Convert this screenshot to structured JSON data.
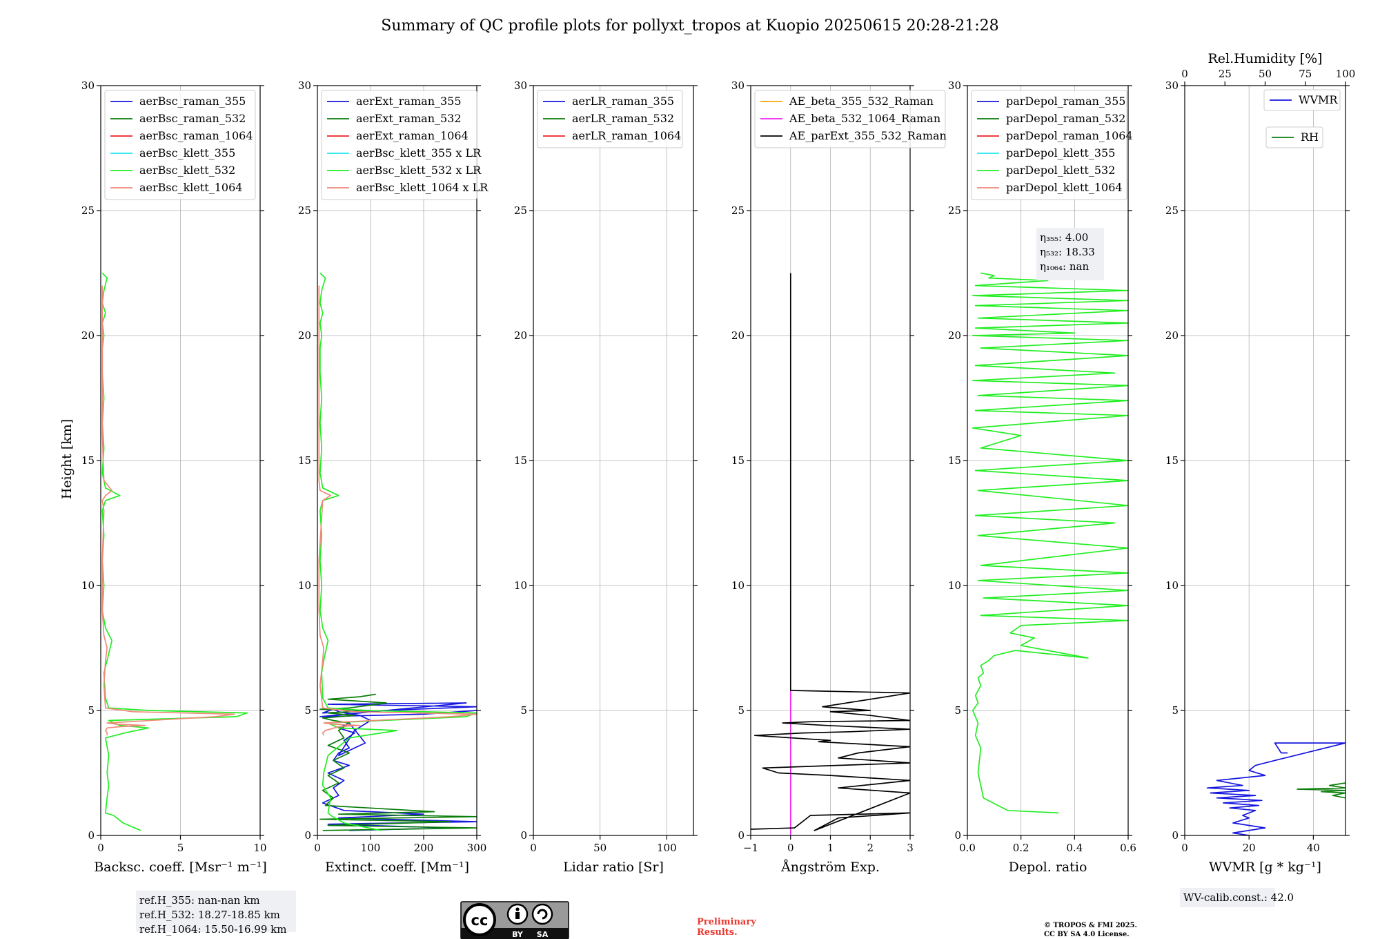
{
  "title": "Summary of QC profile plots for pollyxt_tropos at Kuopio 20250615 20:28-21:28",
  "shared_ylabel": "Height [km]",
  "colors": {
    "blue": "#1515e0",
    "green": "#0a7d0a",
    "red": "#ee2020",
    "cyan": "#1ee6f0",
    "lime": "#22ee22",
    "salmon": "#f08a7a",
    "orange": "#ffa500",
    "magenta": "#ee22ee",
    "black": "#000000"
  },
  "chart_data": [
    {
      "id": "bsc",
      "type": "line",
      "xlabel": "Backsc. coeff. [Msr⁻¹ m⁻¹]",
      "xlim": [
        0,
        10
      ],
      "xticks": [
        0,
        5,
        10
      ],
      "ylim": [
        0,
        30
      ],
      "yticks": [
        0,
        5,
        10,
        15,
        20,
        25,
        30
      ],
      "grid": true,
      "legend_position": "top-left",
      "series": [
        {
          "name": "aerBsc_raman_355",
          "color": "blue",
          "x": [],
          "y": []
        },
        {
          "name": "aerBsc_raman_532",
          "color": "green",
          "x": [],
          "y": []
        },
        {
          "name": "aerBsc_raman_1064",
          "color": "red",
          "x": [],
          "y": []
        },
        {
          "name": "aerBsc_klett_355",
          "color": "cyan",
          "x": [],
          "y": []
        },
        {
          "name": "aerBsc_klett_532",
          "color": "lime",
          "x": [
            2.5,
            1.4,
            0.8,
            0.3,
            0.4,
            0.5,
            0.4,
            0.5,
            0.3,
            1.5,
            3.0,
            1.2,
            0.5,
            8.5,
            9.2,
            3.0,
            0.5,
            0.3,
            0.2,
            0.4,
            0.7,
            0.3,
            0.1,
            0.2,
            0.1,
            0.2,
            0.1,
            0.3,
            1.2,
            0.3,
            0.1,
            0.2,
            0.1,
            0.2,
            0.1,
            0.1,
            0.2,
            0.1,
            0.3,
            0.1,
            0.2,
            0.4,
            0.1
          ],
          "y": [
            0.2,
            0.5,
            0.8,
            0.9,
            1.5,
            2.0,
            2.5,
            3.2,
            3.9,
            4.1,
            4.3,
            4.4,
            4.6,
            4.75,
            4.9,
            5.0,
            5.1,
            5.5,
            6.5,
            7.0,
            7.8,
            8.3,
            9.0,
            10.0,
            11.0,
            12.0,
            13.0,
            13.4,
            13.6,
            13.9,
            14.5,
            15.5,
            16.5,
            17.5,
            18.5,
            19.5,
            20.0,
            20.5,
            20.9,
            21.3,
            21.8,
            22.3,
            22.5
          ]
        },
        {
          "name": "aerBsc_klett_1064",
          "color": "salmon",
          "x": [
            0.4,
            0.4,
            0.3,
            0.4,
            1.2,
            2.8,
            1.0,
            0.4,
            7.2,
            8.4,
            2.0,
            0.3,
            0.2,
            0.3,
            0.4,
            0.2,
            0.1,
            0.1,
            0.2,
            0.1,
            0.3,
            0.7,
            0.2,
            0.1,
            0.1,
            0.1
          ],
          "y": [
            4.0,
            4.1,
            4.2,
            4.3,
            4.35,
            4.4,
            4.45,
            4.5,
            4.75,
            4.85,
            4.95,
            5.1,
            6.0,
            7.0,
            7.5,
            8.0,
            9.0,
            11.0,
            13.0,
            13.4,
            13.6,
            13.8,
            14.2,
            16.0,
            19.0,
            22.0
          ]
        }
      ],
      "note": [
        "ref.H_355: nan-nan km",
        "ref.H_532: 18.27-18.85 km",
        "ref.H_1064: 15.50-16.99 km"
      ]
    },
    {
      "id": "ext",
      "type": "line",
      "xlabel": "Extinct. coeff. [Mm⁻¹]",
      "xlim": [
        0,
        300
      ],
      "xticks": [
        0,
        100,
        200,
        300
      ],
      "ylim": [
        0,
        30
      ],
      "yticks": [
        0,
        5,
        10,
        15,
        20,
        25,
        30
      ],
      "grid": true,
      "legend_position": "top-left",
      "series": [
        {
          "name": "aerExt_raman_355",
          "color": "blue",
          "x": [
            60,
            250,
            20,
            300,
            40,
            200,
            50,
            10,
            40,
            30,
            50,
            20,
            60,
            30,
            40,
            60,
            50,
            70,
            40,
            60,
            90,
            40,
            70,
            100,
            80,
            40,
            30,
            10,
            300,
            20,
            280,
            5,
            200,
            300
          ],
          "y": [
            0.2,
            0.3,
            0.45,
            0.55,
            0.7,
            0.85,
            1.0,
            1.3,
            1.6,
            1.9,
            2.2,
            2.5,
            2.8,
            3.0,
            3.3,
            3.5,
            3.8,
            4.1,
            4.3,
            4.5,
            3.7,
            3.2,
            4.2,
            4.6,
            4.8,
            4.95,
            5.05,
            4.9,
            5.15,
            5.25,
            5.3,
            4.75,
            4.85,
            5.0
          ]
        },
        {
          "name": "aerExt_raman_532",
          "color": "green",
          "x": [
            10,
            300,
            20,
            250,
            5,
            300,
            40,
            220,
            15,
            30,
            10,
            40,
            20,
            50,
            30,
            60,
            20,
            50,
            40,
            60,
            30,
            10,
            70,
            20,
            100,
            5,
            60,
            130,
            20,
            80,
            110
          ],
          "y": [
            0.2,
            0.3,
            0.4,
            0.55,
            0.65,
            0.75,
            0.85,
            0.95,
            1.2,
            1.5,
            1.8,
            2.1,
            2.4,
            2.7,
            3.0,
            3.3,
            3.6,
            3.9,
            4.2,
            4.5,
            4.6,
            4.7,
            4.8,
            4.9,
            5.0,
            5.05,
            5.1,
            5.3,
            5.45,
            5.55,
            5.65
          ]
        },
        {
          "name": "aerExt_raman_1064",
          "color": "red",
          "x": [],
          "y": []
        },
        {
          "name": "aerBsc_klett_355 x LR",
          "color": "cyan",
          "x": [],
          "y": []
        },
        {
          "name": "aerBsc_klett_532 x LR",
          "color": "lime",
          "x": [
            120,
            50,
            25,
            20,
            25,
            10,
            12,
            20,
            60,
            150,
            40,
            20,
            280,
            300,
            90,
            20,
            10,
            8,
            12,
            20,
            10,
            5,
            8,
            5,
            8,
            5,
            10,
            40,
            10,
            5,
            8,
            5,
            8,
            5,
            5,
            8,
            5,
            10,
            5,
            8,
            15,
            5
          ],
          "y": [
            0.2,
            0.5,
            0.8,
            0.9,
            1.5,
            2.0,
            2.5,
            3.2,
            3.9,
            4.2,
            4.3,
            4.5,
            4.75,
            4.9,
            5.0,
            5.1,
            5.5,
            6.5,
            7.0,
            7.8,
            8.3,
            9.0,
            10.0,
            11.0,
            12.0,
            13.0,
            13.4,
            13.6,
            13.9,
            14.5,
            15.5,
            16.5,
            17.5,
            18.5,
            19.5,
            20.0,
            20.5,
            20.9,
            21.3,
            21.8,
            22.3,
            22.5
          ]
        },
        {
          "name": "aerBsc_klett_1064 x LR",
          "color": "salmon",
          "x": [
            12,
            10,
            15,
            40,
            80,
            30,
            12,
            250,
            300,
            70,
            10,
            5,
            10,
            12,
            5,
            3,
            3,
            10,
            25,
            5,
            3,
            3,
            3
          ],
          "y": [
            4.0,
            4.1,
            4.2,
            4.35,
            4.4,
            4.45,
            4.5,
            4.75,
            4.85,
            4.95,
            5.1,
            6.0,
            7.0,
            7.5,
            8.0,
            9.0,
            11.0,
            13.4,
            13.6,
            13.8,
            14.2,
            16.0,
            22.0
          ]
        }
      ]
    },
    {
      "id": "lr",
      "type": "line",
      "xlabel": "Lidar ratio [Sr]",
      "xlim": [
        0,
        120
      ],
      "xticks": [
        0,
        50,
        100
      ],
      "ylim": [
        0,
        30
      ],
      "yticks": [
        0,
        5,
        10,
        15,
        20,
        25,
        30
      ],
      "grid": true,
      "legend_position": "top-left",
      "series": [
        {
          "name": "aerLR_raman_355",
          "color": "blue",
          "x": [],
          "y": []
        },
        {
          "name": "aerLR_raman_532",
          "color": "green",
          "x": [],
          "y": []
        },
        {
          "name": "aerLR_raman_1064",
          "color": "red",
          "x": [],
          "y": []
        }
      ]
    },
    {
      "id": "ae",
      "type": "line",
      "xlabel": "Ångström Exp.",
      "xlim": [
        -1,
        3
      ],
      "xticks": [
        -1,
        0,
        1,
        2,
        3
      ],
      "ylim": [
        0,
        30
      ],
      "yticks": [
        0,
        5,
        10,
        15,
        20,
        25,
        30
      ],
      "grid": true,
      "legend_position": "top-left",
      "series": [
        {
          "name": "AE_beta_355_532_Raman",
          "color": "orange",
          "x": [],
          "y": []
        },
        {
          "name": "AE_beta_532_1064_Raman",
          "color": "magenta",
          "x": [
            0,
            0
          ],
          "y": [
            0,
            5.8
          ]
        },
        {
          "name": "AE_parExt_355_532_Raman",
          "color": "black",
          "x": [
            -1,
            0.1,
            0.5,
            3,
            1.2,
            0.6,
            3,
            1.2,
            3,
            1.0,
            -0.3,
            -0.7,
            3,
            1.2,
            1.7,
            3,
            0.7,
            1.0,
            -0.9,
            0.3,
            1.5,
            3,
            0.9,
            -0.2,
            0.5,
            3,
            2.0,
            1.0,
            2.0,
            0.8,
            3,
            0,
            0
          ],
          "y": [
            0.25,
            0.3,
            0.8,
            0.9,
            0.7,
            0.2,
            1.7,
            1.9,
            2.2,
            2.4,
            2.5,
            2.7,
            2.9,
            3.1,
            3.3,
            3.55,
            3.75,
            3.8,
            4.0,
            4.1,
            4.15,
            4.25,
            4.4,
            4.5,
            4.55,
            4.6,
            4.8,
            4.95,
            5.0,
            5.15,
            5.7,
            5.8,
            22.5
          ]
        }
      ]
    },
    {
      "id": "depol",
      "type": "line",
      "xlabel": "Depol. ratio",
      "xlim": [
        0,
        0.6
      ],
      "xticks": [
        0.0,
        0.2,
        0.4,
        0.6
      ],
      "ylim": [
        0,
        30
      ],
      "yticks": [
        0,
        5,
        10,
        15,
        20,
        25,
        30
      ],
      "grid": true,
      "legend_position": "top-left",
      "series": [
        {
          "name": "parDepol_raman_355",
          "color": "blue",
          "x": [],
          "y": []
        },
        {
          "name": "parDepol_raman_532",
          "color": "green",
          "x": [],
          "y": []
        },
        {
          "name": "parDepol_raman_1064",
          "color": "red",
          "x": [],
          "y": []
        },
        {
          "name": "parDepol_klett_355",
          "color": "cyan",
          "x": [],
          "y": []
        },
        {
          "name": "parDepol_klett_532",
          "color": "lime",
          "x": [
            0.34,
            0.15,
            0.06,
            0.04,
            0.05,
            0.03,
            0.04,
            0.02,
            0.04,
            0.03,
            0.05,
            0.04,
            0.06,
            0.05,
            0.08,
            0.1,
            0.18,
            0.45,
            0.2,
            0.25,
            0.16,
            0.2,
            0.6,
            0.05,
            0.6,
            0.06,
            0.6,
            0.04,
            0.6,
            0.05,
            0.6,
            0.04,
            0.55,
            0.03,
            0.6,
            0.04,
            0.6,
            0.03,
            0.6,
            0.05,
            0.2,
            0.02,
            0.6,
            0.03,
            0.6,
            0.04,
            0.6,
            0.02,
            0.55,
            0.03,
            0.6,
            0.05,
            0.6,
            0.02,
            0.4,
            0.03,
            0.6,
            0.04,
            0.6,
            0.03,
            0.6,
            0.02,
            0.6,
            0.03,
            0.3,
            0.08,
            0.1,
            0.05
          ],
          "y": [
            0.9,
            1.0,
            1.5,
            2.5,
            3.5,
            4.0,
            4.5,
            5.0,
            5.3,
            5.6,
            6.0,
            6.3,
            6.5,
            6.8,
            7.0,
            7.2,
            7.4,
            7.1,
            7.6,
            7.9,
            8.1,
            8.4,
            8.6,
            8.8,
            9.2,
            9.5,
            9.8,
            10.2,
            10.5,
            10.8,
            11.5,
            12.0,
            12.5,
            12.8,
            13.2,
            13.8,
            14.2,
            14.6,
            15.0,
            15.5,
            16.0,
            16.3,
            16.8,
            17.0,
            17.4,
            17.6,
            18.0,
            18.2,
            18.5,
            18.8,
            19.2,
            19.5,
            19.8,
            20.0,
            20.1,
            20.3,
            20.5,
            20.7,
            21.0,
            21.2,
            21.4,
            21.6,
            21.8,
            22.0,
            22.2,
            22.3,
            22.4,
            22.5
          ]
        },
        {
          "name": "parDepol_klett_1064",
          "color": "salmon",
          "x": [],
          "y": []
        }
      ],
      "note": [
        "η₃₅₅: 4.00",
        "η₅₃₂: 18.33",
        "η₁₀₆₄: nan"
      ]
    },
    {
      "id": "wv",
      "type": "line",
      "xlabel": "WVMR [g * kg⁻¹]",
      "xlim": [
        0,
        50
      ],
      "xticks": [
        0,
        20,
        40
      ],
      "top_axis_label": "Rel.Humidity [%]",
      "top_xlim": [
        0,
        100
      ],
      "top_xticks": [
        0,
        25,
        50,
        75,
        100
      ],
      "ylim": [
        0,
        30
      ],
      "yticks": [
        0,
        5,
        10,
        15,
        20,
        25,
        30
      ],
      "grid": true,
      "legend_position": "top-right",
      "series": [
        {
          "name": "WVMR",
          "color": "blue",
          "x": [
            20,
            15,
            25,
            15,
            20,
            18,
            22,
            14,
            23,
            12,
            24,
            10,
            22,
            8,
            20,
            7,
            18,
            10,
            25,
            20,
            22,
            28,
            50,
            28,
            30,
            32
          ],
          "y": [
            0.0,
            0.1,
            0.3,
            0.5,
            0.7,
            0.8,
            1.0,
            1.1,
            1.2,
            1.3,
            1.4,
            1.5,
            1.6,
            1.7,
            1.8,
            1.9,
            2.0,
            2.2,
            2.4,
            2.6,
            2.8,
            3.0,
            3.7,
            3.7,
            3.3,
            3.3
          ]
        },
        {
          "name": "RH",
          "color": "green",
          "x": [
            100,
            92,
            100,
            85,
            100,
            70,
            100,
            90,
            100
          ],
          "y": [
            1.5,
            1.6,
            1.7,
            1.75,
            1.8,
            1.85,
            1.9,
            2.0,
            2.1
          ]
        }
      ],
      "note": [
        "WV-calib.const.: 42.0"
      ]
    }
  ],
  "footer": {
    "license_badge": {
      "icon": "cc-by-sa-icon",
      "labels": [
        "BY",
        "SA"
      ]
    },
    "preliminary": [
      "Preliminary",
      "Results."
    ],
    "copyright": [
      "© TROPOS & FMI 2025.",
      "CC BY SA 4.0 License."
    ]
  }
}
